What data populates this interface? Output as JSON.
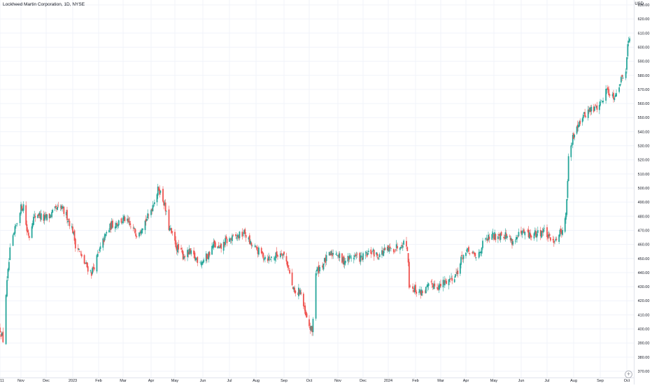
{
  "header": {
    "title": "Lockheed Martin Corporation, 1D, NYSE",
    "currency": "USD"
  },
  "colors": {
    "up": "#26a69a",
    "down": "#ef5350",
    "grid": "#f0f3fa",
    "text": "#131722"
  },
  "chart_data": {
    "type": "candlestick",
    "title": "Lockheed Martin Corporation, 1D, NYSE",
    "currency": "USD",
    "grid": true,
    "ylim": [
      370,
      630
    ],
    "y_ticks": [
      "630.00",
      "620.00",
      "610.00",
      "600.00",
      "590.00",
      "580.00",
      "570.00",
      "560.00",
      "550.00",
      "540.00",
      "530.00",
      "520.00",
      "510.00",
      "500.00",
      "490.00",
      "480.00",
      "470.00",
      "460.00",
      "450.00",
      "440.00",
      "430.00",
      "420.00",
      "410.00",
      "400.00",
      "390.00",
      "380.00",
      "370.00"
    ],
    "x_ticks": [
      {
        "label": "11",
        "date": "2022-10-11"
      },
      {
        "label": "Nov",
        "date": "2022-11-01"
      },
      {
        "label": "Dec",
        "date": "2022-12-01"
      },
      {
        "label": "2023",
        "date": "2023-01-03"
      },
      {
        "label": "Feb",
        "date": "2023-02-01"
      },
      {
        "label": "Mar",
        "date": "2023-03-01"
      },
      {
        "label": "Apr",
        "date": "2023-04-03"
      },
      {
        "label": "May",
        "date": "2023-05-01"
      },
      {
        "label": "Jun",
        "date": "2023-06-01"
      },
      {
        "label": "Jul",
        "date": "2023-07-03"
      },
      {
        "label": "Aug",
        "date": "2023-08-01"
      },
      {
        "label": "Sep",
        "date": "2023-09-01"
      },
      {
        "label": "Oct",
        "date": "2023-10-02"
      },
      {
        "label": "Nov",
        "date": "2023-11-01"
      },
      {
        "label": "Dec",
        "date": "2023-12-01"
      },
      {
        "label": "2024",
        "date": "2024-01-02"
      },
      {
        "label": "Feb",
        "date": "2024-02-01"
      },
      {
        "label": "Mar",
        "date": "2024-03-01"
      },
      {
        "label": "Apr",
        "date": "2024-04-01"
      },
      {
        "label": "May",
        "date": "2024-05-01"
      },
      {
        "label": "Jun",
        "date": "2024-06-03"
      },
      {
        "label": "Jul",
        "date": "2024-07-01"
      },
      {
        "label": "Aug",
        "date": "2024-08-01"
      },
      {
        "label": "Sep",
        "date": "2024-09-03"
      },
      {
        "label": "Oct",
        "date": "2024-10-01"
      }
    ],
    "close_path": [
      [
        "2022-10-11",
        400
      ],
      [
        "2022-10-14",
        392
      ],
      [
        "2022-10-17",
        425
      ],
      [
        "2022-10-21",
        455
      ],
      [
        "2022-10-26",
        470
      ],
      [
        "2022-10-31",
        485
      ],
      [
        "2022-11-04",
        488
      ],
      [
        "2022-11-08",
        470
      ],
      [
        "2022-11-11",
        466
      ],
      [
        "2022-11-15",
        478
      ],
      [
        "2022-11-21",
        482
      ],
      [
        "2022-11-28",
        478
      ],
      [
        "2022-12-05",
        480
      ],
      [
        "2022-12-12",
        484
      ],
      [
        "2022-12-19",
        486
      ],
      [
        "2022-12-27",
        480
      ],
      [
        "2023-01-03",
        470
      ],
      [
        "2023-01-06",
        460
      ],
      [
        "2023-01-10",
        456
      ],
      [
        "2023-01-13",
        450
      ],
      [
        "2023-01-19",
        444
      ],
      [
        "2023-01-24",
        440
      ],
      [
        "2023-01-30",
        450
      ],
      [
        "2023-02-06",
        462
      ],
      [
        "2023-02-10",
        468
      ],
      [
        "2023-02-16",
        474
      ],
      [
        "2023-02-24",
        476
      ],
      [
        "2023-03-03",
        478
      ],
      [
        "2023-03-10",
        472
      ],
      [
        "2023-03-17",
        468
      ],
      [
        "2023-03-24",
        474
      ],
      [
        "2023-03-31",
        480
      ],
      [
        "2023-04-06",
        490
      ],
      [
        "2023-04-12",
        500
      ],
      [
        "2023-04-18",
        490
      ],
      [
        "2023-04-24",
        472
      ],
      [
        "2023-04-28",
        466
      ],
      [
        "2023-05-03",
        458
      ],
      [
        "2023-05-10",
        452
      ],
      [
        "2023-05-17",
        454
      ],
      [
        "2023-05-24",
        450
      ],
      [
        "2023-05-31",
        448
      ],
      [
        "2023-06-07",
        452
      ],
      [
        "2023-06-14",
        460
      ],
      [
        "2023-06-21",
        456
      ],
      [
        "2023-06-28",
        462
      ],
      [
        "2023-07-06",
        464
      ],
      [
        "2023-07-13",
        466
      ],
      [
        "2023-07-20",
        468
      ],
      [
        "2023-07-26",
        460
      ],
      [
        "2023-08-02",
        456
      ],
      [
        "2023-08-09",
        452
      ],
      [
        "2023-08-16",
        450
      ],
      [
        "2023-08-23",
        452
      ],
      [
        "2023-08-30",
        455
      ],
      [
        "2023-09-06",
        445
      ],
      [
        "2023-09-11",
        430
      ],
      [
        "2023-09-15",
        424
      ],
      [
        "2023-09-21",
        428
      ],
      [
        "2023-09-27",
        410
      ],
      [
        "2023-10-02",
        402
      ],
      [
        "2023-10-05",
        398
      ],
      [
        "2023-10-09",
        440
      ],
      [
        "2023-10-16",
        446
      ],
      [
        "2023-10-23",
        452
      ],
      [
        "2023-10-30",
        455
      ],
      [
        "2023-11-06",
        448
      ],
      [
        "2023-11-13",
        450
      ],
      [
        "2023-11-20",
        452
      ],
      [
        "2023-11-28",
        450
      ],
      [
        "2023-12-05",
        452
      ],
      [
        "2023-12-12",
        455
      ],
      [
        "2023-12-19",
        452
      ],
      [
        "2023-12-27",
        455
      ],
      [
        "2024-01-04",
        456
      ],
      [
        "2024-01-11",
        458
      ],
      [
        "2024-01-18",
        462
      ],
      [
        "2024-01-23",
        458
      ],
      [
        "2024-01-25",
        432
      ],
      [
        "2024-01-31",
        428
      ],
      [
        "2024-02-06",
        426
      ],
      [
        "2024-02-13",
        428
      ],
      [
        "2024-02-21",
        432
      ],
      [
        "2024-02-29",
        430
      ],
      [
        "2024-03-07",
        434
      ],
      [
        "2024-03-14",
        436
      ],
      [
        "2024-03-21",
        440
      ],
      [
        "2024-03-28",
        452
      ],
      [
        "2024-04-05",
        455
      ],
      [
        "2024-04-12",
        450
      ],
      [
        "2024-04-19",
        460
      ],
      [
        "2024-04-26",
        465
      ],
      [
        "2024-05-03",
        466
      ],
      [
        "2024-05-10",
        468
      ],
      [
        "2024-05-17",
        466
      ],
      [
        "2024-05-24",
        462
      ],
      [
        "2024-05-31",
        466
      ],
      [
        "2024-06-07",
        468
      ],
      [
        "2024-06-14",
        466
      ],
      [
        "2024-06-21",
        468
      ],
      [
        "2024-06-28",
        470
      ],
      [
        "2024-07-05",
        462
      ],
      [
        "2024-07-12",
        465
      ],
      [
        "2024-07-18",
        470
      ],
      [
        "2024-07-23",
        480
      ],
      [
        "2024-07-26",
        520
      ],
      [
        "2024-07-31",
        535
      ],
      [
        "2024-08-05",
        545
      ],
      [
        "2024-08-12",
        550
      ],
      [
        "2024-08-19",
        555
      ],
      [
        "2024-08-26",
        556
      ],
      [
        "2024-09-03",
        560
      ],
      [
        "2024-09-10",
        570
      ],
      [
        "2024-09-17",
        565
      ],
      [
        "2024-09-24",
        575
      ],
      [
        "2024-09-30",
        585
      ],
      [
        "2024-10-02",
        605
      ],
      [
        "2024-10-04",
        604
      ]
    ]
  }
}
